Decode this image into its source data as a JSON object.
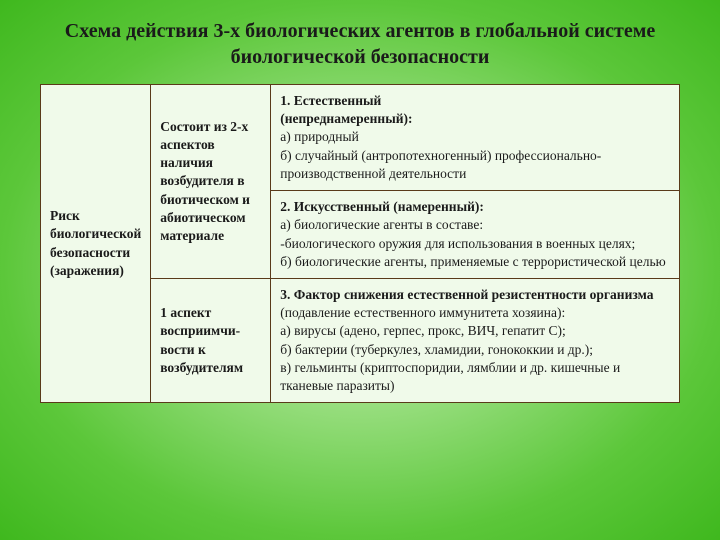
{
  "title": "Схема действия 3-х биологических агентов в глобальной системе биологической безопасности",
  "table": {
    "col1": "Риск биологической безопасности (заражения)",
    "col2a": "Состоит из 2-х аспектов наличия возбудителя в биотическом и абиотическом материале",
    "col2b": "1 аспект восприимчи-вости к возбудителям",
    "cell1": {
      "h": "1. Естественный",
      "h2": "(непреднамеренный):",
      "a": " а) природный",
      "b": "б) случайный (антропотехногенный) профессионально-производственной деятельности"
    },
    "cell2": {
      "h": "2. Искусственный (намеренный):",
      "a": "а) биологические агенты в составе:",
      "a2": "-биологического оружия для использования в военных целях;",
      "b": "б) биологические агенты, применяемые с террористической целью"
    },
    "cell3": {
      "h1": "3. Фактор снижения естественной резистентности организма",
      "h2": " (подавление естественного иммунитета хозяина):",
      "a": "а) вирусы (адено, герпес, прокс, ВИЧ, гепатит С);",
      "b": "б) бактерии (туберкулез, хламидии, гонококкии и др.);",
      "c": "в) гельминты (криптоспоридии, лямблии и др. кишечные и тканевые паразиты)"
    }
  },
  "colors": {
    "border": "#5a3a1a",
    "cell_bg": "#f0faea",
    "text": "#1a1a1a"
  }
}
